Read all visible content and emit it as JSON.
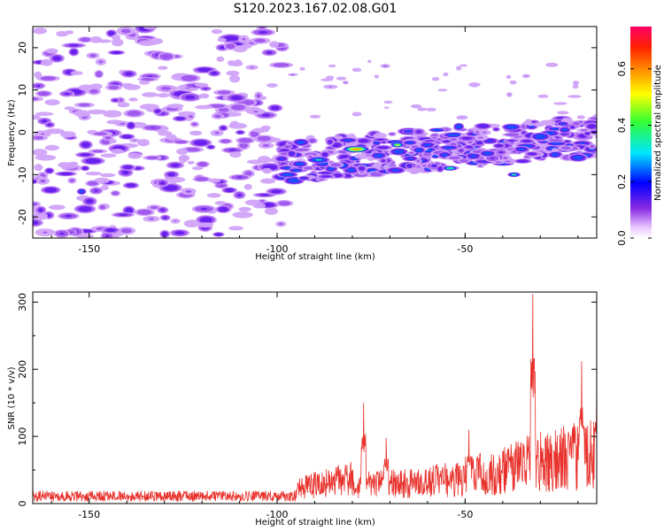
{
  "title": "S120.2023.167.02.08.G01",
  "chart_data": [
    {
      "type": "heatmap",
      "xlabel": "Height of straight line (km)",
      "ylabel": "Frequency (Hz)",
      "xlim": [
        -165,
        -15
      ],
      "ylim": [
        -25,
        25
      ],
      "xticks": [
        -150,
        -100,
        -50
      ],
      "yticks": [
        -20,
        -10,
        0,
        10,
        20
      ],
      "grid": false,
      "colorbar": {
        "label": "Normalized spectral amplitude",
        "range": [
          0,
          0.75
        ],
        "ticks": [
          0.0,
          0.2,
          0.4,
          0.6
        ],
        "tick_labels": [
          "0.0",
          "0.2",
          "0.4",
          "0.6"
        ]
      },
      "description_regions": [
        {
          "x_range": [
            -165,
            -100
          ],
          "freq_range": [
            -25,
            25
          ],
          "level": "noise"
        },
        {
          "x_range": [
            -100,
            -15
          ],
          "freq_range": [
            -12,
            5
          ],
          "level": "signal"
        }
      ]
    },
    {
      "type": "line",
      "xlabel": "Height of straight line (km)",
      "ylabel": "SNR (10 * v/v)",
      "xlim": [
        -165,
        -15
      ],
      "ylim": [
        0,
        315
      ],
      "xticks": [
        -150,
        -100,
        -50
      ],
      "yticks": [
        0,
        100,
        200,
        300
      ],
      "grid": false,
      "series_color": "#e8302a",
      "peaks": [
        {
          "x": -77,
          "y": 150
        },
        {
          "x": -71,
          "y": 98
        },
        {
          "x": -49,
          "y": 110
        },
        {
          "x": -32,
          "y": 312
        },
        {
          "x": -19,
          "y": 212
        },
        {
          "x": -15,
          "y": 175
        }
      ]
    }
  ]
}
